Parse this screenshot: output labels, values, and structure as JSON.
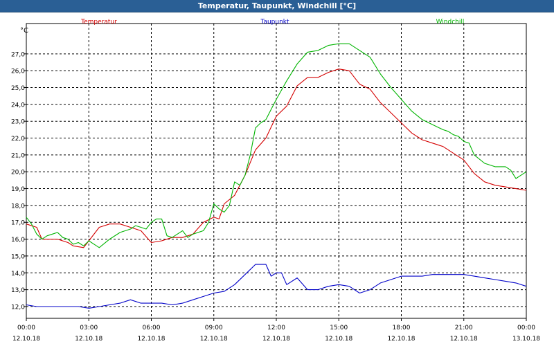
{
  "window": {
    "title": "Temperatur, Taupunkt, Windchill [°C]"
  },
  "colors": {
    "title_bar": "#2a5f95",
    "temperature": "#d40000",
    "dewpoint": "#0000c8",
    "windchill": "#00b400",
    "grid": "#000000"
  },
  "chart_data": {
    "type": "line",
    "title": "Temperatur, Taupunkt, Windchill [°C]",
    "ylabel": "°C",
    "xlabel": "",
    "ylim": [
      11.3,
      28.8
    ],
    "xlim": [
      0,
      24
    ],
    "grid": true,
    "legend_position": "top",
    "yticks": [
      "12,0",
      "13,0",
      "14,0",
      "15,0",
      "16,0",
      "17,0",
      "18,0",
      "19,0",
      "20,0",
      "21,0",
      "22,0",
      "23,0",
      "24,0",
      "25,0",
      "26,0",
      "27,0"
    ],
    "xticks": [
      {
        "time": "00:00",
        "date": "12.10.18"
      },
      {
        "time": "03:00",
        "date": "12.10.18"
      },
      {
        "time": "06:00",
        "date": "12.10.18"
      },
      {
        "time": "09:00",
        "date": "12.10.18"
      },
      {
        "time": "12:00",
        "date": "12.10.18"
      },
      {
        "time": "15:00",
        "date": "12.10.18"
      },
      {
        "time": "18:00",
        "date": "12.10.18"
      },
      {
        "time": "21:00",
        "date": "12.10.18"
      },
      {
        "time": "00:00",
        "date": "13.10.18"
      }
    ],
    "series": [
      {
        "name": "Temperatur",
        "color": "#d40000",
        "x": [
          0,
          0.5,
          0.75,
          1.5,
          2.0,
          2.25,
          2.75,
          3.0,
          3.5,
          4.0,
          4.5,
          5.0,
          5.5,
          6.0,
          6.5,
          7.0,
          7.5,
          8.0,
          8.5,
          9.0,
          9.25,
          9.5,
          10.0,
          10.5,
          11.0,
          11.5,
          12.0,
          12.5,
          13.0,
          13.5,
          14.0,
          14.5,
          15.0,
          15.5,
          16.0,
          16.5,
          17.0,
          17.5,
          18.0,
          18.5,
          19.0,
          19.5,
          20.0,
          20.5,
          21.0,
          21.5,
          22.0,
          22.5,
          23.0,
          23.5,
          24.0
        ],
        "y": [
          16.9,
          16.7,
          16.0,
          16.0,
          15.8,
          15.6,
          15.5,
          15.9,
          16.7,
          16.9,
          16.9,
          16.7,
          16.5,
          15.8,
          15.9,
          16.1,
          16.1,
          16.3,
          17.0,
          17.3,
          17.2,
          18.1,
          18.6,
          19.8,
          21.3,
          22.0,
          23.3,
          23.9,
          25.1,
          25.6,
          25.6,
          25.9,
          26.1,
          26.0,
          25.2,
          24.9,
          24.1,
          23.5,
          22.9,
          22.3,
          21.9,
          21.7,
          21.5,
          21.1,
          20.7,
          19.9,
          19.4,
          19.2,
          19.1,
          19.0,
          18.9
        ]
      },
      {
        "name": "Taupunkt",
        "color": "#0000c8",
        "x": [
          0,
          0.5,
          1.0,
          1.5,
          2.0,
          2.5,
          3.0,
          3.5,
          4.0,
          4.5,
          5.0,
          5.5,
          6.0,
          6.5,
          7.0,
          7.5,
          8.0,
          8.5,
          9.0,
          9.5,
          10.0,
          10.5,
          11.0,
          11.5,
          11.75,
          12.0,
          12.25,
          12.5,
          13.0,
          13.5,
          14.0,
          14.5,
          15.0,
          15.5,
          16.0,
          16.5,
          17.0,
          17.5,
          18.0,
          18.5,
          19.0,
          19.5,
          20.0,
          20.5,
          21.0,
          21.5,
          22.0,
          22.5,
          23.0,
          23.5,
          24.0
        ],
        "y": [
          12.1,
          12.0,
          12.0,
          12.0,
          12.0,
          12.0,
          11.9,
          12.0,
          12.1,
          12.2,
          12.4,
          12.2,
          12.2,
          12.2,
          12.1,
          12.2,
          12.4,
          12.6,
          12.8,
          12.9,
          13.3,
          13.9,
          14.5,
          14.5,
          13.8,
          14.0,
          14.0,
          13.3,
          13.7,
          13.0,
          13.0,
          13.2,
          13.3,
          13.2,
          12.8,
          13.0,
          13.4,
          13.6,
          13.8,
          13.8,
          13.8,
          13.9,
          13.9,
          13.9,
          13.9,
          13.8,
          13.7,
          13.6,
          13.5,
          13.4,
          13.2
        ]
      },
      {
        "name": "Windchill",
        "color": "#00b400",
        "x": [
          0,
          0.25,
          0.5,
          0.75,
          1.0,
          1.25,
          1.5,
          1.75,
          2.0,
          2.25,
          2.5,
          2.75,
          3.0,
          3.25,
          3.5,
          4.0,
          4.5,
          5.0,
          5.25,
          5.5,
          5.75,
          6.0,
          6.25,
          6.5,
          6.75,
          7.0,
          7.25,
          7.5,
          7.75,
          8.0,
          8.5,
          8.75,
          9.0,
          9.25,
          9.5,
          9.75,
          10.0,
          10.25,
          10.5,
          10.75,
          11.0,
          11.25,
          11.5,
          12.0,
          12.5,
          13.0,
          13.5,
          14.0,
          14.5,
          15.0,
          15.5,
          16.0,
          16.5,
          17.0,
          17.5,
          18.0,
          18.5,
          19.0,
          19.5,
          20.0,
          20.25,
          20.5,
          20.75,
          21.0,
          21.25,
          21.5,
          22.0,
          22.5,
          23.0,
          23.25,
          23.5,
          24.0
        ],
        "y": [
          17.3,
          16.9,
          16.3,
          16.0,
          16.2,
          16.3,
          16.4,
          16.1,
          16.0,
          15.7,
          15.8,
          15.6,
          15.9,
          15.7,
          15.5,
          16.0,
          16.4,
          16.6,
          16.8,
          16.7,
          16.6,
          17.0,
          17.2,
          17.2,
          16.2,
          16.1,
          16.3,
          16.5,
          16.1,
          16.3,
          16.5,
          17.0,
          18.1,
          17.8,
          17.6,
          18.0,
          19.4,
          19.2,
          19.8,
          21.0,
          22.6,
          22.9,
          23.1,
          24.3,
          25.4,
          26.4,
          27.1,
          27.2,
          27.5,
          27.6,
          27.6,
          27.2,
          26.8,
          25.8,
          25.0,
          24.3,
          23.6,
          23.1,
          22.8,
          22.5,
          22.4,
          22.2,
          22.1,
          21.8,
          21.7,
          21.0,
          20.5,
          20.3,
          20.3,
          20.1,
          19.6,
          20.0
        ]
      }
    ]
  }
}
